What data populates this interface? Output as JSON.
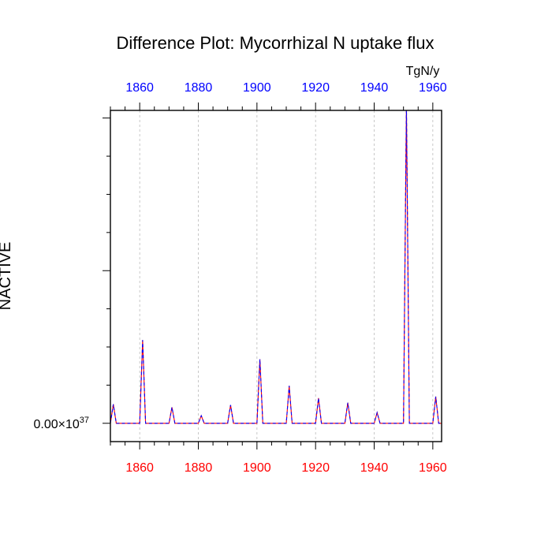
{
  "chart_data": {
    "type": "line",
    "title": "Difference Plot: Mycorrhizal N uptake flux",
    "units_label": "TgN/y",
    "ylabel": "NACTIVE",
    "xlim": [
      1850,
      1963
    ],
    "ylim": [
      -1.2,
      20.5
    ],
    "x_ticks": [
      1860,
      1880,
      1900,
      1920,
      1940,
      1960
    ],
    "x_tick_labels": [
      "1860",
      "1880",
      "1900",
      "1920",
      "1940",
      "1960"
    ],
    "x_minor_step": 5,
    "y_major_ticks": [
      0,
      10,
      20
    ],
    "y_minor_step": 2.5,
    "y_tick_label": "0.00",
    "y_tick_label_suffix": "×10",
    "y_tick_label_exponent": "37",
    "grid": "vertical-dashed",
    "colors": {
      "top_ticks": "#0000ff",
      "bottom_ticks": "#ff0000",
      "series_a": "#ff0000",
      "series_b": "#0000ff",
      "axes": "#000000",
      "grid": "#bbbbbb"
    },
    "series": [
      {
        "name": "series-a",
        "x": [
          1850,
          1851,
          1852,
          1859,
          1860,
          1861,
          1862,
          1869,
          1870,
          1871,
          1872,
          1879,
          1880,
          1881,
          1882,
          1889,
          1890,
          1891,
          1892,
          1899,
          1900,
          1901,
          1902,
          1909,
          1910,
          1911,
          1912,
          1919,
          1920,
          1921,
          1922,
          1929,
          1930,
          1931,
          1932,
          1939,
          1940,
          1941,
          1942,
          1949,
          1950,
          1951,
          1952,
          1959,
          1960,
          1961,
          1962,
          1963
        ],
        "y": [
          0,
          1.25,
          0,
          0,
          0,
          5.45,
          0,
          0,
          0,
          1.05,
          0,
          0,
          0,
          0.5,
          0,
          0,
          0,
          1.2,
          0,
          0,
          0,
          4.2,
          0,
          0,
          0,
          2.45,
          0,
          0,
          0,
          1.65,
          0,
          0,
          0,
          1.35,
          0,
          0,
          0,
          0.7,
          0,
          0,
          0,
          20.9,
          0,
          0,
          0,
          1.75,
          0,
          0
        ]
      },
      {
        "name": "series-b",
        "x": [
          1850,
          1851,
          1852,
          1859,
          1860,
          1861,
          1862,
          1869,
          1870,
          1871,
          1872,
          1879,
          1880,
          1881,
          1882,
          1889,
          1890,
          1891,
          1892,
          1899,
          1900,
          1901,
          1902,
          1909,
          1910,
          1911,
          1912,
          1919,
          1920,
          1921,
          1922,
          1929,
          1930,
          1931,
          1932,
          1939,
          1940,
          1941,
          1942,
          1949,
          1950,
          1951,
          1952,
          1959,
          1960,
          1961,
          1962,
          1963
        ],
        "y": [
          0,
          1.25,
          0,
          0,
          0,
          5.45,
          0,
          0,
          0,
          1.05,
          0,
          0,
          0,
          0.5,
          0,
          0,
          0,
          1.2,
          0,
          0,
          0,
          4.2,
          0,
          0,
          0,
          2.45,
          0,
          0,
          0,
          1.65,
          0,
          0,
          0,
          1.35,
          0,
          0,
          0,
          0.7,
          0,
          0,
          0,
          20.9,
          0,
          0,
          0,
          1.75,
          0,
          0
        ]
      }
    ]
  }
}
